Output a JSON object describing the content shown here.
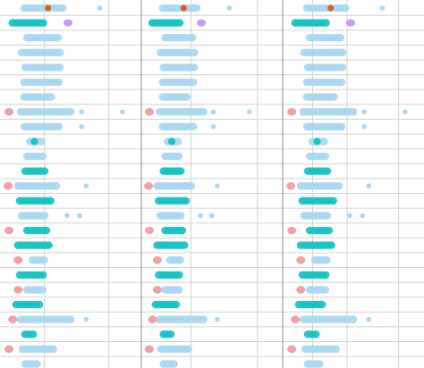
{
  "chart_data": {
    "type": "scatter",
    "title": "",
    "xlabel": "",
    "ylabel": "",
    "grid": true,
    "legend": "none",
    "colors": {
      "light_blue": "#a9d8f0",
      "teal": "#17c2c2",
      "pink": "#f0a0a8",
      "lavender": "#c79bf0",
      "orange": "#e05a1a",
      "grid": "#d4d4d4",
      "panel_border": "#8a8a8a"
    },
    "panels": [
      {
        "name": "",
        "xlim": [
          0,
          150
        ],
        "ref_lines": [
          49,
          120
        ]
      },
      {
        "name": "",
        "xlim": [
          0,
          170
        ],
        "ref_lines": [
          62,
          145
        ]
      },
      {
        "name": "",
        "xlim": [
          0,
          150
        ],
        "ref_lines": [
          33,
          71,
          128
        ]
      }
    ],
    "rows": [
      {
        "y": 1,
        "color": "light_blue",
        "start": 27,
        "end": 72,
        "outliers": [
          110
        ],
        "accent": {
          "color": "orange",
          "x": 53
        }
      },
      {
        "y": 2,
        "color": "teal",
        "start": 14,
        "end": 48,
        "outliers": [],
        "extra": {
          "color": "lavender",
          "x": 75
        }
      },
      {
        "y": 3,
        "color": "light_blue",
        "start": 30,
        "end": 65,
        "outliers": []
      },
      {
        "y": 4,
        "color": "light_blue",
        "start": 24,
        "end": 68,
        "outliers": []
      },
      {
        "y": 5,
        "color": "light_blue",
        "start": 28,
        "end": 66,
        "outliers": []
      },
      {
        "y": 6,
        "color": "light_blue",
        "start": 27,
        "end": 65,
        "outliers": []
      },
      {
        "y": 7,
        "color": "light_blue",
        "start": 27,
        "end": 58,
        "outliers": []
      },
      {
        "y": 8,
        "color": "light_blue",
        "start": 23,
        "end": 80,
        "outliers": [
          90,
          135
        ],
        "lead": {
          "color": "pink",
          "x": 10
        }
      },
      {
        "y": 9,
        "color": "light_blue",
        "start": 27,
        "end": 68,
        "outliers": [
          90
        ]
      },
      {
        "y": 10,
        "color": "light_blue",
        "start": 33,
        "end": 48,
        "outliers": [],
        "mark": {
          "color": "teal",
          "x": 38
        }
      },
      {
        "y": 11,
        "color": "light_blue",
        "start": 30,
        "end": 50,
        "outliers": []
      },
      {
        "y": 12,
        "color": "teal",
        "start": 28,
        "end": 50,
        "outliers": []
      },
      {
        "y": 13,
        "color": "light_blue",
        "start": 20,
        "end": 64,
        "outliers": [
          95
        ],
        "lead": {
          "color": "pink",
          "x": 9
        }
      },
      {
        "y": 14,
        "color": "teal",
        "start": 22,
        "end": 56,
        "outliers": []
      },
      {
        "y": 15,
        "color": "light_blue",
        "start": 24,
        "end": 50,
        "outliers": [
          74,
          88
        ]
      },
      {
        "y": 16,
        "color": "teal",
        "start": 30,
        "end": 55,
        "outliers": [],
        "lead": {
          "color": "pink",
          "x": 10
        }
      },
      {
        "y": 17,
        "color": "teal",
        "start": 20,
        "end": 55,
        "outliers": []
      },
      {
        "y": 18,
        "color": "light_blue",
        "start": 36,
        "end": 52,
        "outliers": [],
        "lead": {
          "color": "pink",
          "x": 20
        }
      },
      {
        "y": 19,
        "color": "teal",
        "start": 22,
        "end": 50,
        "outliers": []
      },
      {
        "y": 20,
        "color": "light_blue",
        "start": 30,
        "end": 48,
        "outliers": [],
        "lead": {
          "color": "pink",
          "x": 20
        }
      },
      {
        "y": 21,
        "color": "teal",
        "start": 18,
        "end": 44,
        "outliers": []
      },
      {
        "y": 22,
        "color": "light_blue",
        "start": 23,
        "end": 78,
        "outliers": [
          95
        ],
        "lead": {
          "color": "pink",
          "x": 14
        }
      },
      {
        "y": 23,
        "color": "teal",
        "start": 28,
        "end": 40,
        "outliers": []
      },
      {
        "y": 24,
        "color": "light_blue",
        "start": 25,
        "end": 62,
        "outliers": [],
        "lead": {
          "color": "pink",
          "x": 10
        }
      },
      {
        "y": 25,
        "color": "light_blue",
        "start": 28,
        "end": 42,
        "outliers": []
      }
    ]
  }
}
